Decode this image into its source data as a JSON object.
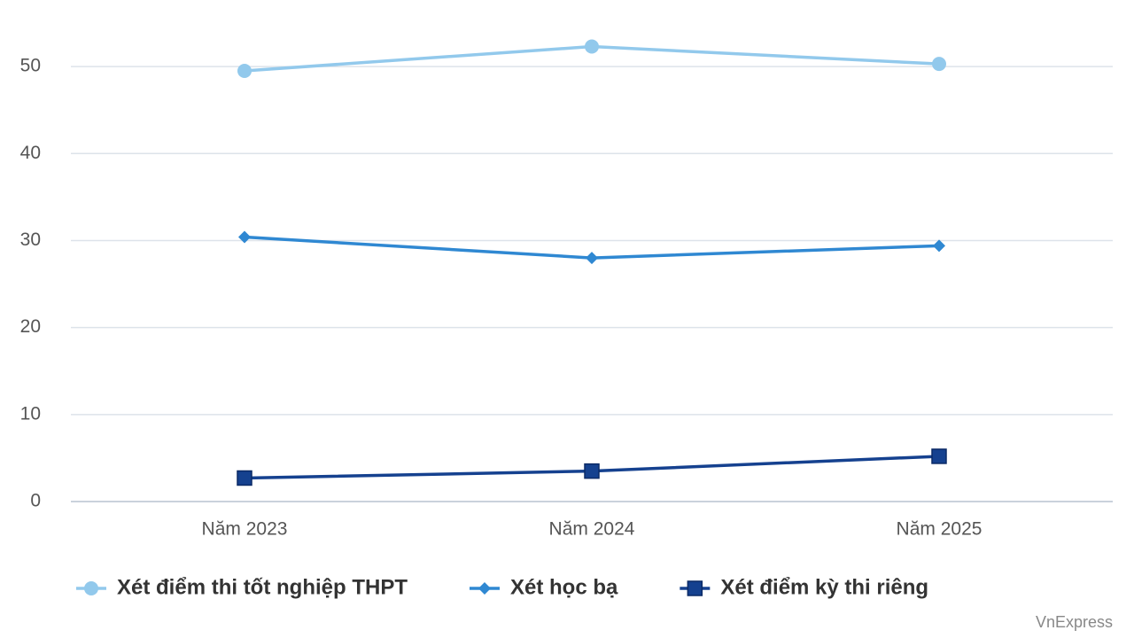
{
  "chart_data": {
    "type": "line",
    "categories": [
      "Năm 2023",
      "Năm 2024",
      "Năm 2025"
    ],
    "series": [
      {
        "name": "Xét điểm thi tốt nghiệp THPT",
        "color": "#92c9ec",
        "marker": "circle",
        "values": [
          49.5,
          52.3,
          50.3
        ]
      },
      {
        "name": "Xét học bạ",
        "color": "#2f88d2",
        "marker": "diamond",
        "values": [
          30.4,
          28.0,
          29.4
        ]
      },
      {
        "name": "Xét điểm kỳ thi riêng",
        "color": "#15418f",
        "marker": "square",
        "values": [
          2.7,
          3.5,
          5.2
        ]
      }
    ],
    "ylim": [
      0,
      55
    ],
    "yticks": [
      0,
      10,
      20,
      30,
      40,
      50
    ],
    "grid": true,
    "source": "VnExpress"
  }
}
